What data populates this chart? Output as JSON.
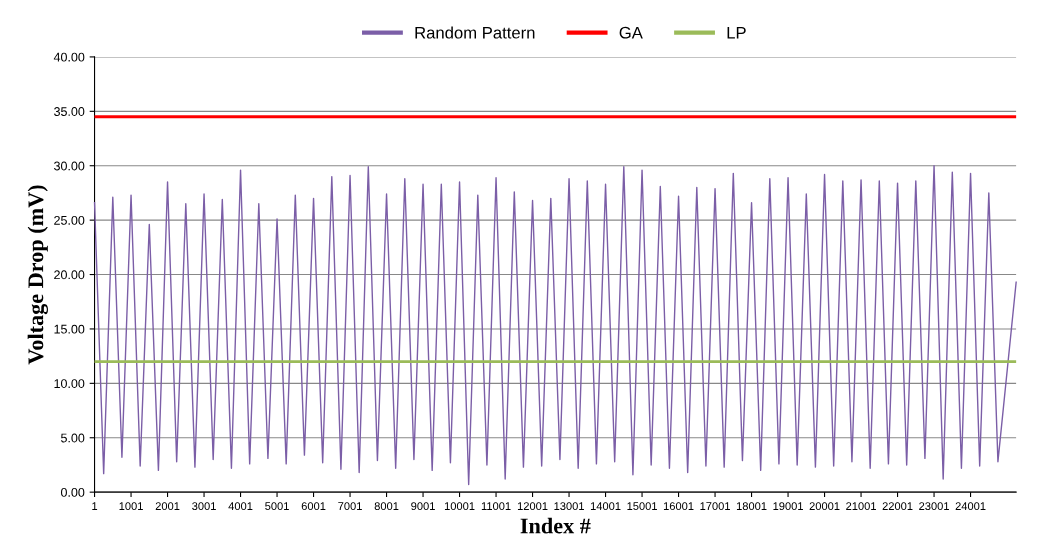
{
  "chart_data": {
    "type": "line",
    "xlabel": "Index #",
    "ylabel": "Voltage Drop (mV)",
    "x": [
      1,
      251,
      501,
      751,
      1001,
      1251,
      1501,
      1751,
      2001,
      2251,
      2501,
      2751,
      3001,
      3251,
      3501,
      3751,
      4001,
      4251,
      4501,
      4751,
      5001,
      5251,
      5501,
      5751,
      6001,
      6251,
      6501,
      6751,
      7001,
      7251,
      7501,
      7751,
      8001,
      8251,
      8501,
      8751,
      9001,
      9251,
      9501,
      9751,
      10001,
      10251,
      10501,
      10751,
      11001,
      11251,
      11501,
      11751,
      12001,
      12251,
      12501,
      12751,
      13001,
      13251,
      13501,
      13751,
      14001,
      14251,
      14501,
      14751,
      15001,
      15251,
      15501,
      15751,
      16001,
      16251,
      16501,
      16751,
      17001,
      17251,
      17501,
      17751,
      18001,
      18251,
      18501,
      18751,
      19001,
      19251,
      19501,
      19751,
      20001,
      20251,
      20501,
      20751,
      21001,
      21251,
      21501,
      21751,
      22001,
      22251,
      22501,
      22751,
      23001,
      23251,
      23501,
      23751,
      24001,
      24251,
      24501,
      24751,
      25250
    ],
    "series": [
      {
        "name": "Random Pattern",
        "color": "#7b5ea7",
        "values": [
          26.6,
          1.7,
          27.1,
          3.2,
          27.3,
          2.4,
          24.6,
          2.0,
          28.5,
          2.8,
          26.5,
          2.3,
          27.4,
          3.0,
          26.9,
          2.2,
          29.6,
          2.6,
          26.5,
          3.1,
          25.1,
          2.6,
          27.3,
          3.4,
          27.0,
          2.7,
          29.0,
          2.1,
          29.1,
          1.8,
          29.9,
          2.9,
          27.4,
          2.2,
          28.8,
          3.0,
          28.3,
          2.0,
          28.3,
          2.7,
          28.5,
          0.7,
          27.3,
          2.5,
          28.9,
          1.2,
          27.6,
          2.3,
          26.8,
          2.4,
          27.0,
          3.0,
          28.8,
          2.2,
          28.6,
          2.6,
          28.3,
          2.8,
          29.9,
          1.6,
          29.6,
          2.5,
          28.1,
          2.2,
          27.2,
          1.8,
          28.0,
          2.4,
          27.9,
          2.3,
          29.3,
          2.9,
          26.6,
          2.0,
          28.8,
          2.6,
          28.9,
          2.5,
          27.4,
          2.3,
          29.2,
          2.4,
          28.6,
          2.8,
          28.7,
          2.2,
          28.6,
          2.6,
          28.4,
          2.5,
          28.6,
          3.1,
          30.0,
          1.2,
          29.4,
          2.2,
          29.3,
          2.4,
          27.5,
          2.8,
          19.3
        ]
      }
    ],
    "ref_lines": [
      {
        "axis": "y",
        "value": 34.5,
        "label": "GA",
        "color": "#ff0000"
      },
      {
        "axis": "y",
        "value": 12.0,
        "label": "LP",
        "color": "#9bbb59"
      }
    ],
    "xlim": [
      1,
      25250
    ],
    "xticks": [
      1,
      1001,
      2001,
      3001,
      4001,
      5001,
      6001,
      7001,
      8001,
      9001,
      10001,
      11001,
      12001,
      13001,
      14001,
      15001,
      16001,
      17001,
      18001,
      19001,
      20001,
      21001,
      22001,
      23001,
      24001
    ],
    "ylim": [
      0,
      40
    ],
    "yticks": [
      {
        "value": 0,
        "label": "0.00"
      },
      {
        "value": 5,
        "label": "5.00"
      },
      {
        "value": 10,
        "label": "10.00"
      },
      {
        "value": 15,
        "label": "15.00"
      },
      {
        "value": 20,
        "label": "20.00"
      },
      {
        "value": 25,
        "label": "25.00"
      },
      {
        "value": 30,
        "label": "30.00"
      },
      {
        "value": 35,
        "label": "35.00"
      },
      {
        "value": 40,
        "label": "40.00"
      }
    ],
    "grid": "y",
    "legend": "top",
    "marker": "none",
    "line_style": "solid"
  }
}
